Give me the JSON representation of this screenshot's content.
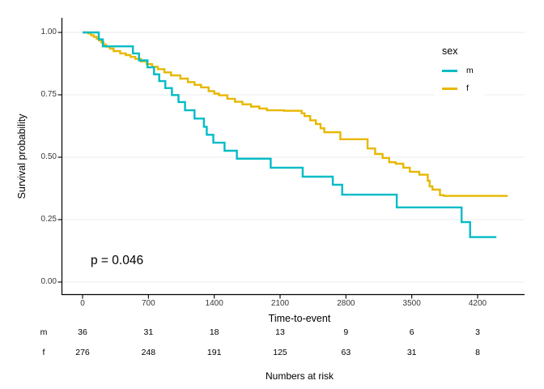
{
  "figure": {
    "p_value_label": "p = 0.046",
    "x_axis_title": "Time-to-event",
    "y_axis_title": "Survival probability",
    "risk_caption": "Numbers at risk"
  },
  "legend": {
    "title": "sex",
    "items": [
      {
        "label": "m",
        "color": "#00BCC6"
      },
      {
        "label": "f",
        "color": "#E7B800"
      }
    ]
  },
  "chart_data": {
    "type": "line",
    "subtype": "kaplan-meier-step",
    "title": "",
    "xlabel": "Time-to-event",
    "ylabel": "Survival probability",
    "xlim": [
      0,
      4700
    ],
    "ylim": [
      0,
      1
    ],
    "x_ticks": [
      0,
      700,
      1400,
      2100,
      2800,
      3500,
      4200
    ],
    "y_ticks": [
      {
        "value": 0.0,
        "label": "0.00"
      },
      {
        "value": 0.25,
        "label": "0.25"
      },
      {
        "value": 0.5,
        "label": "0.50"
      },
      {
        "value": 0.75,
        "label": "0.75"
      },
      {
        "value": 1.0,
        "label": "1.00"
      }
    ],
    "grid": "horizontal-only",
    "legend_position": "inside-top-right",
    "annotations": [
      {
        "text": "p = 0.046",
        "x": 120,
        "y": 0.09
      }
    ],
    "series": [
      {
        "name": "m",
        "color": "#00BCC6",
        "points": [
          [
            0,
            1.0
          ],
          [
            172,
            0.972
          ],
          [
            215,
            0.944
          ],
          [
            535,
            0.916
          ],
          [
            600,
            0.888
          ],
          [
            690,
            0.86
          ],
          [
            760,
            0.832
          ],
          [
            815,
            0.805
          ],
          [
            880,
            0.777
          ],
          [
            950,
            0.749
          ],
          [
            1020,
            0.721
          ],
          [
            1090,
            0.688
          ],
          [
            1190,
            0.655
          ],
          [
            1290,
            0.622
          ],
          [
            1320,
            0.59
          ],
          [
            1390,
            0.558
          ],
          [
            1510,
            0.526
          ],
          [
            1640,
            0.494
          ],
          [
            2000,
            0.458
          ],
          [
            2340,
            0.422
          ],
          [
            2660,
            0.39
          ],
          [
            2760,
            0.35
          ],
          [
            3340,
            0.299
          ],
          [
            4030,
            0.24
          ],
          [
            4120,
            0.18
          ],
          [
            4400,
            0.18
          ]
        ]
      },
      {
        "name": "f",
        "color": "#E7B800",
        "points": [
          [
            0,
            1.0
          ],
          [
            60,
            0.996
          ],
          [
            90,
            0.989
          ],
          [
            120,
            0.982
          ],
          [
            150,
            0.975
          ],
          [
            175,
            0.968
          ],
          [
            200,
            0.96
          ],
          [
            225,
            0.951
          ],
          [
            250,
            0.943
          ],
          [
            290,
            0.935
          ],
          [
            330,
            0.925
          ],
          [
            400,
            0.916
          ],
          [
            460,
            0.909
          ],
          [
            510,
            0.902
          ],
          [
            560,
            0.894
          ],
          [
            620,
            0.884
          ],
          [
            680,
            0.873
          ],
          [
            740,
            0.862
          ],
          [
            800,
            0.853
          ],
          [
            870,
            0.84
          ],
          [
            940,
            0.828
          ],
          [
            1040,
            0.815
          ],
          [
            1120,
            0.801
          ],
          [
            1190,
            0.79
          ],
          [
            1260,
            0.78
          ],
          [
            1340,
            0.765
          ],
          [
            1400,
            0.755
          ],
          [
            1450,
            0.748
          ],
          [
            1540,
            0.734
          ],
          [
            1620,
            0.722
          ],
          [
            1700,
            0.712
          ],
          [
            1790,
            0.703
          ],
          [
            1880,
            0.695
          ],
          [
            1960,
            0.688
          ],
          [
            2140,
            0.686
          ],
          [
            2330,
            0.676
          ],
          [
            2360,
            0.665
          ],
          [
            2420,
            0.648
          ],
          [
            2480,
            0.633
          ],
          [
            2530,
            0.616
          ],
          [
            2570,
            0.6
          ],
          [
            2740,
            0.572
          ],
          [
            3030,
            0.535
          ],
          [
            3110,
            0.513
          ],
          [
            3190,
            0.497
          ],
          [
            3260,
            0.48
          ],
          [
            3330,
            0.474
          ],
          [
            3410,
            0.458
          ],
          [
            3480,
            0.442
          ],
          [
            3580,
            0.43
          ],
          [
            3670,
            0.406
          ],
          [
            3690,
            0.383
          ],
          [
            3720,
            0.37
          ],
          [
            3800,
            0.348
          ],
          [
            3840,
            0.345
          ],
          [
            4520,
            0.345
          ]
        ]
      }
    ],
    "risk_table": {
      "caption": "Numbers at risk",
      "time_points": [
        0,
        700,
        1400,
        2100,
        2800,
        3500,
        4200
      ],
      "rows": [
        {
          "label": "m",
          "counts": [
            36,
            31,
            18,
            13,
            9,
            6,
            3
          ]
        },
        {
          "label": "f",
          "counts": [
            276,
            248,
            191,
            125,
            63,
            31,
            8
          ]
        }
      ]
    }
  }
}
